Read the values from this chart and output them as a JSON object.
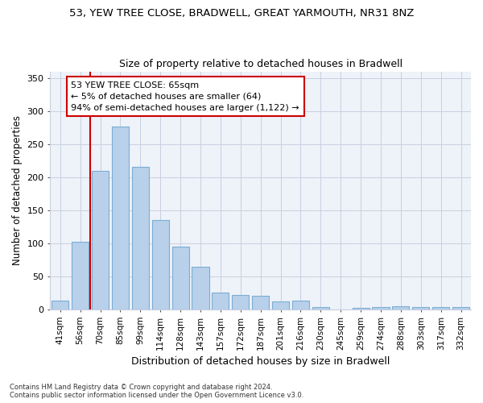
{
  "title1": "53, YEW TREE CLOSE, BRADWELL, GREAT YARMOUTH, NR31 8NZ",
  "title2": "Size of property relative to detached houses in Bradwell",
  "xlabel": "Distribution of detached houses by size in Bradwell",
  "ylabel": "Number of detached properties",
  "categories": [
    "41sqm",
    "56sqm",
    "70sqm",
    "85sqm",
    "99sqm",
    "114sqm",
    "128sqm",
    "143sqm",
    "157sqm",
    "172sqm",
    "187sqm",
    "201sqm",
    "216sqm",
    "230sqm",
    "245sqm",
    "259sqm",
    "274sqm",
    "288sqm",
    "303sqm",
    "317sqm",
    "332sqm"
  ],
  "values": [
    13,
    102,
    210,
    277,
    216,
    135,
    95,
    65,
    25,
    22,
    21,
    12,
    13,
    3,
    0,
    2,
    3,
    5,
    3,
    3,
    3
  ],
  "bar_color": "#b8d0ea",
  "bar_edge_color": "#7aadd4",
  "vline_x_index": 2,
  "vline_color": "#cc0000",
  "annotation_text": "53 YEW TREE CLOSE: 65sqm\n← 5% of detached houses are smaller (64)\n94% of semi-detached houses are larger (1,122) →",
  "annotation_box_color": "#ffffff",
  "annotation_box_edge": "#cc0000",
  "ylim": [
    0,
    360
  ],
  "yticks": [
    0,
    50,
    100,
    150,
    200,
    250,
    300,
    350
  ],
  "background_color": "#eef2f9",
  "grid_color": "#c8d0e0",
  "footer1": "Contains HM Land Registry data © Crown copyright and database right 2024.",
  "footer2": "Contains public sector information licensed under the Open Government Licence v3.0."
}
